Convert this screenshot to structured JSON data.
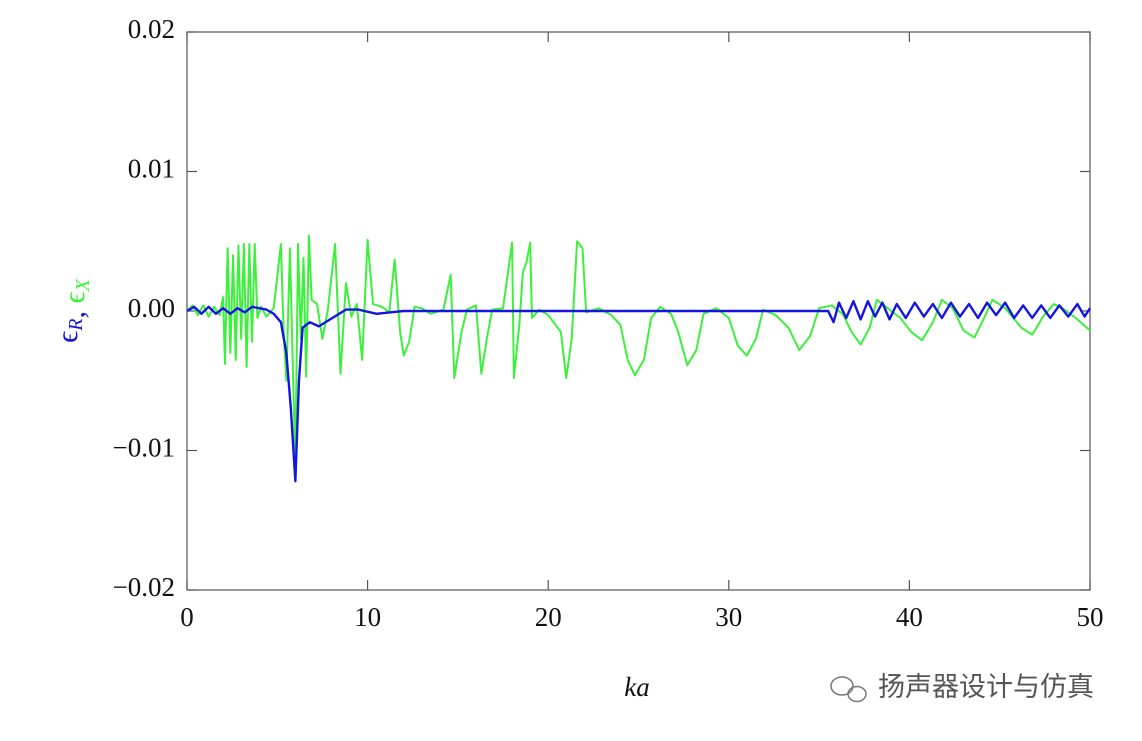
{
  "chart_data": {
    "type": "line",
    "xlabel": "ka",
    "ylabel": [
      {
        "text": "ϵ",
        "sub": "R",
        "color": "#1515e0"
      },
      {
        "text": ", ",
        "color": "#1515e0"
      },
      {
        "text": "ϵ",
        "sub": "X",
        "color": "#3cf03c"
      }
    ],
    "xlim": [
      0,
      50
    ],
    "ylim": [
      -0.02,
      0.02
    ],
    "xticks": [
      0,
      10,
      20,
      30,
      40,
      50
    ],
    "yticks": [
      {
        "value": -0.02,
        "label": "−0.02"
      },
      {
        "value": -0.01,
        "label": "−0.01"
      },
      {
        "value": 0,
        "label": "0.00"
      },
      0.01,
      0.02
    ],
    "series": [
      {
        "color": "#3cf03c",
        "x": [
          0,
          0.3,
          0.6,
          0.9,
          1.2,
          1.5,
          1.8,
          2.0,
          2.1,
          2.25,
          2.4,
          2.55,
          2.7,
          2.85,
          3.0,
          3.15,
          3.3,
          3.45,
          3.6,
          3.75,
          3.9,
          4.1,
          4.4,
          4.8,
          5.2,
          5.35,
          5.5,
          5.7,
          5.85,
          6.0,
          6.15,
          6.3,
          6.45,
          6.6,
          6.75,
          6.9,
          7.2,
          7.5,
          7.8,
          8.2,
          8.5,
          8.8,
          9.1,
          9.4,
          9.7,
          10.0,
          10.3,
          10.8,
          11.2,
          11.5,
          11.8,
          12.0,
          12.3,
          12.6,
          13.0,
          13.5,
          14.2,
          14.6,
          14.8,
          15.2,
          15.5,
          16.0,
          16.3,
          16.6,
          16.9,
          17.5,
          18.0,
          18.1,
          18.4,
          18.6,
          18.8,
          19.0,
          19.1,
          19.5,
          20.0,
          20.7,
          21.0,
          21.3,
          21.6,
          21.9,
          22.1,
          22.8,
          23.5,
          24.0,
          24.4,
          24.8,
          25.3,
          25.7,
          26.2,
          26.8,
          27.2,
          27.7,
          28.2,
          28.6,
          29.3,
          30.0,
          30.5,
          31.0,
          31.5,
          31.9,
          32.6,
          33.3,
          33.9,
          34.5,
          35.0,
          35.7,
          36.3,
          36.8,
          37.3,
          37.8,
          38.2,
          38.8,
          39.5,
          40.1,
          40.7,
          41.3,
          41.8,
          42.4,
          43.0,
          43.6,
          44.1,
          44.6,
          45.3,
          46.2,
          46.8,
          47.4,
          48.0,
          48.6,
          49.3,
          50
        ],
        "values": [
          0,
          0.0004,
          -0.0003,
          0.0004,
          -0.0004,
          0.0003,
          -0.0003,
          0.001,
          -0.0038,
          0.0045,
          -0.003,
          0.004,
          -0.0035,
          0.0047,
          -0.002,
          0.0048,
          -0.004,
          0.0048,
          -0.0022,
          0.0048,
          -0.0005,
          0.0003,
          -0.0004,
          0.0002,
          0.0048,
          -0.0015,
          -0.005,
          0.0045,
          -0.0035,
          -0.011,
          0.0048,
          -0.002,
          0.0038,
          -0.0047,
          0.0054,
          0.0008,
          0.0005,
          -0.002,
          0.0001,
          0.0048,
          -0.0045,
          0.002,
          -0.0004,
          0.0005,
          -0.0035,
          0.0051,
          0.0005,
          0.0003,
          -0.0001,
          0.0037,
          -0.0015,
          -0.0032,
          -0.0022,
          0.0003,
          0.0002,
          -0.0002,
          0.0001,
          0.0026,
          -0.0048,
          -0.0015,
          0.0001,
          0.0004,
          -0.0045,
          -0.002,
          0.0001,
          0.0002,
          0.0049,
          -0.0048,
          -0.001,
          0.0028,
          0.0035,
          0.0049,
          -0.0005,
          0.0001,
          -0.0003,
          -0.0015,
          -0.0048,
          -0.002,
          0.005,
          0.0045,
          -0.0001,
          0.0002,
          -0.0003,
          -0.001,
          -0.0035,
          -0.0046,
          -0.0035,
          -0.0005,
          0.0003,
          -0.0002,
          -0.0015,
          -0.0039,
          -0.0028,
          -0.0002,
          0.0002,
          -0.0005,
          -0.0025,
          -0.0032,
          -0.002,
          0.0001,
          -0.0003,
          -0.0012,
          -0.0028,
          -0.0018,
          0.0002,
          0.0004,
          -0.0002,
          -0.0015,
          -0.0024,
          -0.0012,
          0.0008,
          0.0002,
          -0.0005,
          -0.0015,
          -0.0021,
          -0.0008,
          0.0008,
          0.0002,
          -0.0014,
          -0.0019,
          -0.0006,
          0.0008,
          0.0002,
          -0.0012,
          -0.0017,
          -0.0004,
          0.0005,
          0.0001,
          -0.0006,
          -0.0014
        ]
      },
      {
        "color": "#1515e0",
        "x": [
          0,
          0.4,
          0.8,
          1.2,
          1.6,
          2.0,
          2.4,
          2.8,
          3.2,
          3.6,
          4.0,
          4.4,
          4.8,
          5.2,
          5.5,
          5.75,
          6.0,
          6.2,
          6.4,
          6.8,
          7.3,
          7.8,
          8.3,
          8.8,
          9.5,
          10.5,
          12,
          15,
          20,
          25,
          30,
          35.5,
          35.8,
          36.1,
          36.5,
          36.9,
          37.3,
          37.7,
          38.1,
          38.5,
          38.9,
          39.3,
          39.8,
          40.3,
          40.8,
          41.3,
          41.8,
          42.3,
          42.8,
          43.3,
          43.8,
          44.3,
          44.8,
          45.3,
          45.8,
          46.3,
          46.8,
          47.3,
          47.8,
          48.3,
          48.8,
          49.3,
          49.7,
          50
        ],
        "values": [
          0,
          0.0003,
          -0.0002,
          0.0003,
          -0.0002,
          0.0002,
          -0.0002,
          0.0002,
          -0.0001,
          0.0003,
          0.0002,
          0.0001,
          -0.0002,
          -0.0008,
          -0.003,
          -0.007,
          -0.0122,
          -0.005,
          -0.0012,
          -0.0008,
          -0.0011,
          -0.0007,
          -0.0003,
          0.0001,
          0.0001,
          -0.0002,
          0,
          0,
          0,
          0,
          0,
          0,
          -0.0008,
          0.0006,
          -0.0005,
          0.0007,
          -0.0006,
          0.0007,
          -0.0004,
          0.0006,
          -0.0006,
          0.0005,
          -0.0005,
          0.0006,
          -0.0004,
          0.0005,
          -0.0005,
          0.0006,
          -0.0004,
          0.0005,
          -0.0005,
          0.0006,
          -0.0003,
          0.0006,
          -0.0005,
          0.0004,
          -0.0005,
          0.0004,
          -0.0005,
          0.0004,
          -0.0004,
          0.0005,
          -0.0004,
          0.0002
        ]
      }
    ]
  },
  "watermark": "扬声器设计与仿真"
}
